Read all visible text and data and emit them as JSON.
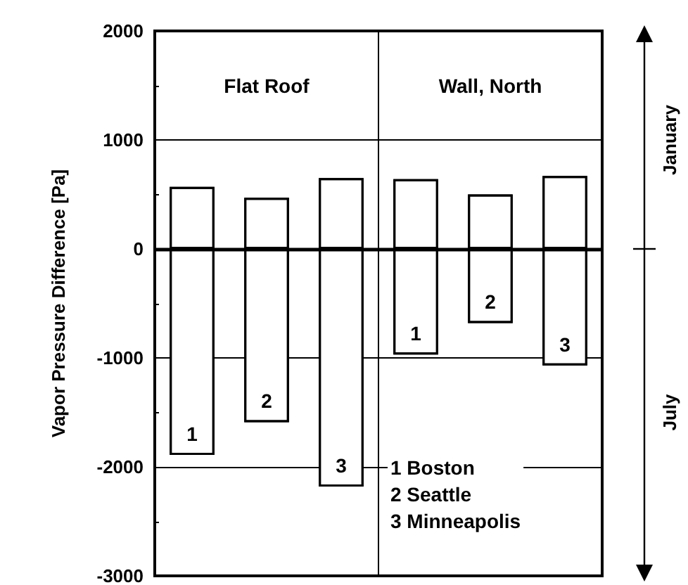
{
  "chart_data": {
    "type": "bar",
    "ylabel": "Vapor Pressure Difference [Pa]",
    "categories": [
      "1",
      "2",
      "3",
      "1",
      "2",
      "3"
    ],
    "stacked": true,
    "series": [
      {
        "name": "January",
        "color": "#ffffff",
        "values": [
          570,
          470,
          650,
          640,
          500,
          670
        ]
      },
      {
        "name": "July",
        "color": "#ffffff",
        "values": [
          -1890,
          -1590,
          -2180,
          -970,
          -680,
          -1070
        ]
      }
    ],
    "ylim": [
      -3000,
      2000
    ],
    "yticks": [
      -3000,
      {
        "value": -2500,
        "label": null
      },
      -2000,
      {
        "value": -1500,
        "label": null
      },
      -1000,
      {
        "value": -500,
        "label": null
      },
      0,
      {
        "value": 500,
        "label": null
      },
      1000,
      {
        "value": 1500,
        "label": null
      },
      2000
    ],
    "grid": "y",
    "legend": false,
    "ref_lines": [
      {
        "axis": "y",
        "value": 0,
        "color": "#000000"
      }
    ],
    "annotations": [
      "Flat Roof",
      "Wall, North",
      "1 Boston\n2 Seattle\n3 Minneapolis"
    ]
  }
}
